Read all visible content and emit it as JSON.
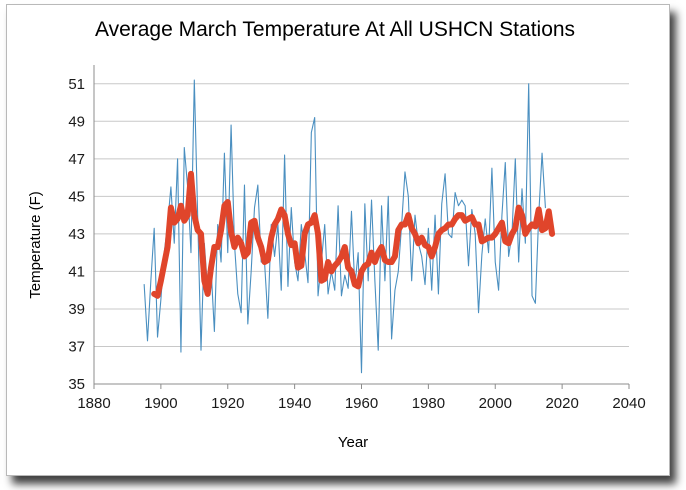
{
  "chart_data": {
    "type": "line",
    "title": "Average March Temperature At All USHCN Stations",
    "xlabel": "Year",
    "ylabel": "Temperature  (F)",
    "xlim": [
      1880,
      2040
    ],
    "ylim": [
      35,
      52
    ],
    "xticks": [
      1880,
      1900,
      1920,
      1940,
      1960,
      1980,
      2000,
      2020,
      2040
    ],
    "yticks": [
      35,
      37,
      39,
      41,
      43,
      45,
      47,
      49,
      51
    ],
    "grid": "horizontal",
    "legend": "none",
    "colors": {
      "annual": "#4a8fc0",
      "smoothed": "#e0452b",
      "grid": "#c8c8c8",
      "axis": "#8c8c8c"
    },
    "series": [
      {
        "style": "thin",
        "x_start": 1895,
        "values": [
          40.3,
          37.3,
          40.5,
          43.3,
          37.5,
          39.5,
          42.0,
          43.5,
          45.5,
          42.5,
          47.0,
          36.7,
          47.6,
          45.5,
          42.0,
          51.2,
          44.0,
          36.8,
          42.5,
          40.0,
          41.2,
          37.8,
          43.5,
          41.5,
          47.3,
          42.0,
          48.8,
          42.5,
          39.8,
          38.8,
          45.6,
          38.2,
          41.0,
          44.4,
          45.6,
          41.5,
          41.5,
          38.5,
          43.5,
          41.8,
          43.5,
          40.0,
          47.2,
          40.2,
          44.4,
          41.5,
          40.5,
          43.5,
          42.0,
          40.4,
          48.4,
          49.2,
          39.7,
          41.5,
          43.5,
          39.8,
          41.0,
          40.0,
          44.5,
          39.7,
          40.8,
          40.1,
          44.2,
          40.2,
          42.0,
          35.6,
          44.6,
          40.5,
          44.8,
          40.5,
          36.8,
          44.5,
          40.5,
          45.0,
          37.4,
          40.0,
          41.0,
          43.5,
          46.3,
          45.0,
          40.5,
          44.0,
          42.5,
          41.8,
          40.3,
          43.3,
          40.0,
          44.0,
          39.8,
          44.6,
          46.2,
          43.0,
          42.8,
          45.2,
          44.5,
          44.8,
          44.5,
          41.3,
          44.3,
          43.0,
          38.8,
          41.9,
          43.8,
          42.0,
          46.5,
          41.5,
          40.0,
          44.0,
          46.8,
          41.8,
          43.0,
          47.0,
          41.5,
          45.4,
          42.5,
          51.0,
          39.7,
          39.3,
          44.0,
          47.3,
          44.4
        ]
      },
      {
        "style": "thick",
        "x_start": 1898,
        "values": [
          39.8,
          39.7,
          40.5,
          41.4,
          42.3,
          44.4,
          43.6,
          43.8,
          44.5,
          43.7,
          44.0,
          46.2,
          44.0,
          43.2,
          43.0,
          40.5,
          39.8,
          41.2,
          42.3,
          42.3,
          43.2,
          44.5,
          44.7,
          43.1,
          42.3,
          42.8,
          42.5,
          41.8,
          42.0,
          43.6,
          43.7,
          42.8,
          42.3,
          41.5,
          41.6,
          42.8,
          43.5,
          43.8,
          44.3,
          44.0,
          43.0,
          42.4,
          42.5,
          41.2,
          41.3,
          43.0,
          43.5,
          43.6,
          44.0,
          43.0,
          40.5,
          40.6,
          41.5,
          41.0,
          41.3,
          41.5,
          41.8,
          42.3,
          41.2,
          41.0,
          40.3,
          40.2,
          41.0,
          41.3,
          41.4,
          42.0,
          41.5,
          42.0,
          42.3,
          41.6,
          41.5,
          41.5,
          41.8,
          43.2,
          43.5,
          43.5,
          44.0,
          43.3,
          43.0,
          42.5,
          42.8,
          42.4,
          42.3,
          41.8,
          42.3,
          43.0,
          43.2,
          43.3,
          43.5,
          43.5,
          43.8,
          44.0,
          44.0,
          43.7,
          43.8,
          43.9,
          43.5,
          43.5,
          42.6,
          42.7,
          42.8,
          42.8,
          43.0,
          43.3,
          43.6,
          42.6,
          42.5,
          43.0,
          43.3,
          44.4,
          44.0,
          43.0,
          43.3,
          43.5,
          43.4,
          44.3,
          43.2,
          43.3,
          44.2,
          43.0
        ]
      }
    ]
  }
}
